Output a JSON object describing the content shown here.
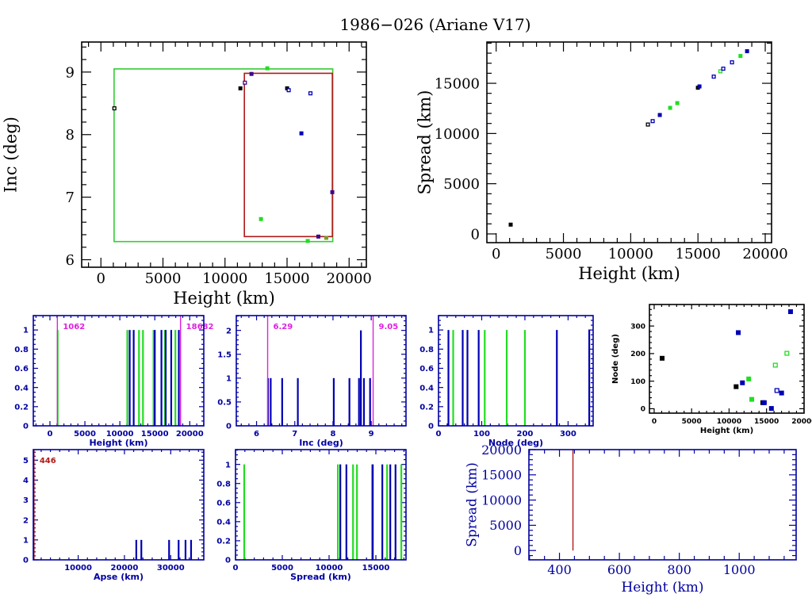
{
  "title": "1986−026 (Ariane V17)",
  "chart_data": [
    {
      "id": "inc-vs-height",
      "type": "scatter",
      "xlabel": "Height (km)",
      "ylabel": "Inc (deg)",
      "xlim": [
        -1550,
        21390
      ],
      "ylim": [
        5.88,
        9.48
      ],
      "xticks": [
        0,
        5000,
        10000,
        15000,
        20000
      ],
      "xtick_labels": [
        "0",
        "5000",
        "10000",
        "15000",
        "20000"
      ],
      "xminor": 1000,
      "yticks": [
        6,
        7,
        8,
        9
      ],
      "ytick_labels": [
        "6",
        "7",
        "8",
        "9"
      ],
      "yminor": 0.2,
      "boxes": [
        {
          "x0": 1062,
          "x1": 18682,
          "y0": 6.29,
          "y1": 9.05,
          "color": "#33cc33"
        },
        {
          "x0": 11560,
          "x1": 18650,
          "y0": 6.37,
          "y1": 8.98,
          "color": "#b01818"
        }
      ],
      "points": [
        {
          "x": 1085,
          "y": 8.42,
          "color": "#000000",
          "open": true
        },
        {
          "x": 11240,
          "y": 8.74,
          "color": "#000000",
          "open": false
        },
        {
          "x": 11603,
          "y": 8.83,
          "color": "#3a0a8a",
          "open": true
        },
        {
          "x": 12133,
          "y": 8.97,
          "color": "#3a0a8a",
          "open": false
        },
        {
          "x": 12899,
          "y": 6.65,
          "color": "#22dd22",
          "open": false
        },
        {
          "x": 13410,
          "y": 9.06,
          "color": "#22dd22",
          "open": false
        },
        {
          "x": 15006,
          "y": 8.74,
          "color": "#000000",
          "open": false
        },
        {
          "x": 15134,
          "y": 8.71,
          "color": "#0000b4",
          "open": true
        },
        {
          "x": 16156,
          "y": 8.02,
          "color": "#0000b4",
          "open": false
        },
        {
          "x": 16667,
          "y": 6.3,
          "color": "#22dd22",
          "open": false
        },
        {
          "x": 16885,
          "y": 8.66,
          "color": "#0000b4",
          "open": true
        },
        {
          "x": 17522,
          "y": 6.37,
          "color": "#3a0a8a",
          "open": false
        },
        {
          "x": 18160,
          "y": 6.35,
          "color": "#7a9a30",
          "open": false
        },
        {
          "x": 18646,
          "y": 7.08,
          "color": "#3a0a8a",
          "open": false
        }
      ]
    },
    {
      "id": "spread-vs-height",
      "type": "scatter",
      "xlabel": "Height (km)",
      "ylabel": "Spread (km)",
      "xlim": [
        -690,
        20470
      ],
      "ylim": [
        -870,
        19110
      ],
      "xticks": [
        0,
        5000,
        10000,
        15000,
        20000
      ],
      "xtick_labels": [
        "0",
        "5000",
        "10000",
        "15000",
        "20000"
      ],
      "xminor": 1000,
      "yticks": [
        0,
        5000,
        10000,
        15000
      ],
      "ytick_labels": [
        "0",
        "5000",
        "10000",
        "15000"
      ],
      "yminor": 1000,
      "points": [
        {
          "x": 1079,
          "y": 925,
          "color": "#000000",
          "open": false
        },
        {
          "x": 11280,
          "y": 10894,
          "color": "#000000",
          "open": true
        },
        {
          "x": 11634,
          "y": 11234,
          "color": "#0000b4",
          "open": true
        },
        {
          "x": 12164,
          "y": 11843,
          "color": "#0000b4",
          "open": false
        },
        {
          "x": 12931,
          "y": 12555,
          "color": "#22dd22",
          "open": false
        },
        {
          "x": 13462,
          "y": 13030,
          "color": "#22dd22",
          "open": false
        },
        {
          "x": 14994,
          "y": 14557,
          "color": "#000000",
          "open": false
        },
        {
          "x": 15112,
          "y": 14690,
          "color": "#0000b4",
          "open": false
        },
        {
          "x": 16174,
          "y": 15665,
          "color": "#0000b4",
          "open": true
        },
        {
          "x": 16666,
          "y": 16195,
          "color": "#22dd22",
          "open": true
        },
        {
          "x": 16881,
          "y": 16456,
          "color": "#0000b4",
          "open": true
        },
        {
          "x": 17530,
          "y": 17089,
          "color": "#0000b4",
          "open": true
        },
        {
          "x": 18160,
          "y": 17722,
          "color": "#22dd22",
          "open": false
        },
        {
          "x": 18650,
          "y": 18196,
          "color": "#0000b4",
          "open": false
        }
      ]
    },
    {
      "id": "height-histogram",
      "type": "bar",
      "xlabel": "Height (km)",
      "ylabel": "",
      "xlim": [
        -2380,
        22010
      ],
      "ylim": [
        0,
        1.15
      ],
      "xticks": [
        0,
        5000,
        10000,
        15000,
        20000
      ],
      "xtick_labels": [
        "0",
        "5000",
        "10000",
        "15000",
        "20000"
      ],
      "xminor": 1000,
      "yticks": [
        0,
        0.2,
        0.4,
        0.6,
        0.8,
        1
      ],
      "ytick_labels": [
        "0",
        "0.2",
        "0.4",
        "0.6",
        "0.8",
        "1"
      ],
      "yminor": 0.05,
      "vlines": [
        {
          "x": 1062,
          "label": "1062",
          "color": "#e020e0"
        },
        {
          "x": 18682,
          "label": "18682",
          "color": "#e020e0"
        }
      ],
      "bars": [
        {
          "x": 1100,
          "count": 1,
          "color": "#22dd22"
        },
        {
          "x": 11070,
          "count": 1,
          "color": "#22dd22"
        },
        {
          "x": 11410,
          "count": 1,
          "color": "#0000b4"
        },
        {
          "x": 11980,
          "count": 1,
          "color": "#0000b4"
        },
        {
          "x": 12740,
          "count": 1,
          "color": "#22dd22"
        },
        {
          "x": 13310,
          "count": 1,
          "color": "#22dd22"
        },
        {
          "x": 14820,
          "count": 1,
          "color": "#22dd22"
        },
        {
          "x": 15000,
          "count": 1,
          "color": "#0000b4"
        },
        {
          "x": 15950,
          "count": 1,
          "color": "#0000b4"
        },
        {
          "x": 16440,
          "count": 1,
          "color": "#22dd22"
        },
        {
          "x": 16560,
          "count": 1,
          "color": "#0000b4"
        },
        {
          "x": 17350,
          "count": 1,
          "color": "#0000b4"
        },
        {
          "x": 17950,
          "count": 1,
          "color": "#22dd22"
        },
        {
          "x": 18440,
          "count": 1,
          "color": "#0000b4"
        }
      ]
    },
    {
      "id": "inc-histogram",
      "type": "bar",
      "xlabel": "Inc (deg)",
      "ylabel": "",
      "xlim": [
        5.47,
        9.91
      ],
      "ylim": [
        0,
        2.31
      ],
      "xticks": [
        6,
        7,
        8,
        9
      ],
      "xtick_labels": [
        "6",
        "7",
        "8",
        "9"
      ],
      "xminor": 0.2,
      "yticks": [
        0,
        0.5,
        1,
        1.5,
        2
      ],
      "ytick_labels": [
        "0",
        "0.5",
        "1",
        "1.5",
        "2"
      ],
      "yminor": 0.1,
      "vlines": [
        {
          "x": 6.29,
          "label": "6.29",
          "color": "#e020e0"
        },
        {
          "x": 9.05,
          "label": "9.05",
          "color": "#e020e0"
        }
      ],
      "bars": [
        {
          "x": 6.3,
          "count": 1,
          "color": "#0000b4"
        },
        {
          "x": 6.37,
          "count": 1,
          "color": "#0000b4"
        },
        {
          "x": 6.67,
          "count": 1,
          "color": "#0000b4"
        },
        {
          "x": 7.08,
          "count": 1,
          "color": "#0000b4"
        },
        {
          "x": 8.02,
          "count": 1,
          "color": "#0000b4"
        },
        {
          "x": 8.43,
          "count": 1,
          "color": "#0000b4"
        },
        {
          "x": 8.68,
          "count": 1,
          "color": "#0000b4"
        },
        {
          "x": 8.73,
          "count": 2,
          "color": "#0000b4"
        },
        {
          "x": 8.81,
          "count": 1,
          "color": "#0000b4"
        },
        {
          "x": 8.97,
          "count": 1,
          "color": "#0000b4"
        }
      ]
    },
    {
      "id": "node-histogram",
      "type": "bar",
      "xlabel": "Node (deg)",
      "ylabel": "",
      "xlim": [
        0,
        358
      ],
      "ylim": [
        0,
        1.15
      ],
      "xticks": [
        0,
        100,
        200,
        300
      ],
      "xtick_labels": [
        "0",
        "100",
        "200",
        "300"
      ],
      "xminor": 20,
      "yticks": [
        0,
        0.2,
        0.4,
        0.6,
        0.8,
        1
      ],
      "ytick_labels": [
        "0",
        "0.2",
        "0.4",
        "0.6",
        "0.8",
        "1"
      ],
      "yminor": 0.05,
      "bars": [
        {
          "x": 23,
          "count": 1,
          "color": "#0000b4"
        },
        {
          "x": 34,
          "count": 1,
          "color": "#22dd22"
        },
        {
          "x": 56,
          "count": 1,
          "color": "#0000b4"
        },
        {
          "x": 67,
          "count": 1,
          "color": "#0000b4"
        },
        {
          "x": 93,
          "count": 1,
          "color": "#0000b4"
        },
        {
          "x": 107,
          "count": 1,
          "color": "#22dd22"
        },
        {
          "x": 158,
          "count": 1,
          "color": "#22dd22"
        },
        {
          "x": 200,
          "count": 1,
          "color": "#22dd22"
        },
        {
          "x": 274,
          "count": 1,
          "color": "#0000b4"
        },
        {
          "x": 349,
          "count": 1,
          "color": "#0000b4"
        }
      ]
    },
    {
      "id": "node-vs-height",
      "type": "scatter",
      "xlabel": "Height (km)",
      "ylabel": "Node (deg)",
      "xlim": [
        -630,
        20010
      ],
      "ylim": [
        -16,
        378
      ],
      "xticks": [
        0,
        5000,
        10000,
        15000,
        20000
      ],
      "xtick_labels": [
        "0",
        "5000",
        "10000",
        "15000",
        "20000"
      ],
      "xminor": 1000,
      "yticks": [
        0,
        100,
        200,
        300
      ],
      "ytick_labels": [
        "0",
        "100",
        "200",
        "300"
      ],
      "yminor": 20,
      "points": [
        {
          "x": 1062,
          "y": 183,
          "color": "#000000",
          "open": false
        },
        {
          "x": 10941,
          "y": 80,
          "color": "#000000",
          "open": false
        },
        {
          "x": 11227,
          "y": 276,
          "color": "#0000b4",
          "open": false
        },
        {
          "x": 11783,
          "y": 94,
          "color": "#0000b4",
          "open": false
        },
        {
          "x": 12623,
          "y": 108,
          "color": "#22dd22",
          "open": false
        },
        {
          "x": 13029,
          "y": 34,
          "color": "#22dd22",
          "open": false
        },
        {
          "x": 14497,
          "y": 22,
          "color": "#000000",
          "open": false
        },
        {
          "x": 14706,
          "y": 22,
          "color": "#0000b4",
          "open": false
        },
        {
          "x": 15650,
          "y": 1,
          "color": "#0000b4",
          "open": false
        },
        {
          "x": 16174,
          "y": 158,
          "color": "#22dd22",
          "open": true
        },
        {
          "x": 16384,
          "y": 66,
          "color": "#0000b4",
          "open": true
        },
        {
          "x": 17013,
          "y": 57,
          "color": "#0000b4",
          "open": false
        },
        {
          "x": 17718,
          "y": 201,
          "color": "#22dd22",
          "open": true
        },
        {
          "x": 18204,
          "y": 352,
          "color": "#0000b4",
          "open": false
        }
      ]
    },
    {
      "id": "apse-histogram",
      "type": "bar",
      "xlabel": "Apse (km)",
      "ylabel": "",
      "xlim": [
        300,
        37150
      ],
      "ylim": [
        0,
        5.53
      ],
      "xticks": [
        10000,
        20000,
        30000
      ],
      "xtick_labels": [
        "10000",
        "20000",
        "30000"
      ],
      "xminor": 2000,
      "yticks": [
        0,
        1,
        2,
        3,
        4,
        5
      ],
      "ytick_labels": [
        "0",
        "1",
        "2",
        "3",
        "4",
        "5"
      ],
      "yminor": 0.2,
      "vlines": [
        {
          "x": 446,
          "label": "446",
          "color": "#b01818"
        }
      ],
      "bars": [
        {
          "x": 22560,
          "count": 1,
          "color": "#0000b4"
        },
        {
          "x": 23650,
          "count": 1,
          "color": "#0000b4"
        },
        {
          "x": 29650,
          "count": 1,
          "color": "#0000b4"
        },
        {
          "x": 31710,
          "count": 1,
          "color": "#0000b4"
        },
        {
          "x": 33200,
          "count": 1,
          "color": "#0000b4"
        },
        {
          "x": 34400,
          "count": 1,
          "color": "#0000b4"
        }
      ]
    },
    {
      "id": "spread-histogram",
      "type": "bar",
      "xlabel": "Spread (km)",
      "ylabel": "",
      "xlim": [
        0,
        18220
      ],
      "ylim": [
        0,
        1.155
      ],
      "xticks": [
        0,
        5000,
        10000,
        15000
      ],
      "xtick_labels": [
        "0",
        "5000",
        "10000",
        "15000"
      ],
      "xminor": 1000,
      "yticks": [
        0,
        0.2,
        0.4,
        0.6,
        0.8,
        1
      ],
      "ytick_labels": [
        "0",
        "0.2",
        "0.4",
        "0.6",
        "0.8",
        "1"
      ],
      "yminor": 0.05,
      "bars": [
        {
          "x": 930,
          "count": 1,
          "color": "#22dd22"
        },
        {
          "x": 10940,
          "count": 1,
          "color": "#22dd22"
        },
        {
          "x": 11200,
          "count": 1,
          "color": "#0000b4"
        },
        {
          "x": 11850,
          "count": 1,
          "color": "#0000b4"
        },
        {
          "x": 12560,
          "count": 1,
          "color": "#22dd22"
        },
        {
          "x": 12980,
          "count": 1,
          "color": "#22dd22"
        },
        {
          "x": 14590,
          "count": 1,
          "color": "#22dd22"
        },
        {
          "x": 14670,
          "count": 1,
          "color": "#0000b4"
        },
        {
          "x": 15690,
          "count": 1,
          "color": "#0000b4"
        },
        {
          "x": 16200,
          "count": 1,
          "color": "#22dd22"
        },
        {
          "x": 16540,
          "count": 1,
          "color": "#0000b4"
        },
        {
          "x": 17100,
          "count": 1,
          "color": "#0000b4"
        },
        {
          "x": 17720,
          "count": 1,
          "color": "#22dd22"
        }
      ]
    },
    {
      "id": "spread-vs-height-low",
      "type": "line",
      "xlabel": "Height (km)",
      "ylabel": "Spread (km)",
      "xlim": [
        298,
        1190
      ],
      "ylim": [
        -1850,
        20000
      ],
      "xticks": [
        400,
        600,
        800,
        1000
      ],
      "xtick_labels": [
        "400",
        "600",
        "800",
        "1000"
      ],
      "xminor": 50,
      "yticks": [
        0,
        5000,
        10000,
        15000,
        20000
      ],
      "ytick_labels": [
        "0",
        "5000",
        "10000",
        "15000",
        "20000"
      ],
      "yminor": 1000,
      "series": [
        {
          "name": "decay-line",
          "color": "#b01818",
          "x": [
            445,
            445
          ],
          "y": [
            0,
            20000
          ]
        }
      ]
    }
  ]
}
